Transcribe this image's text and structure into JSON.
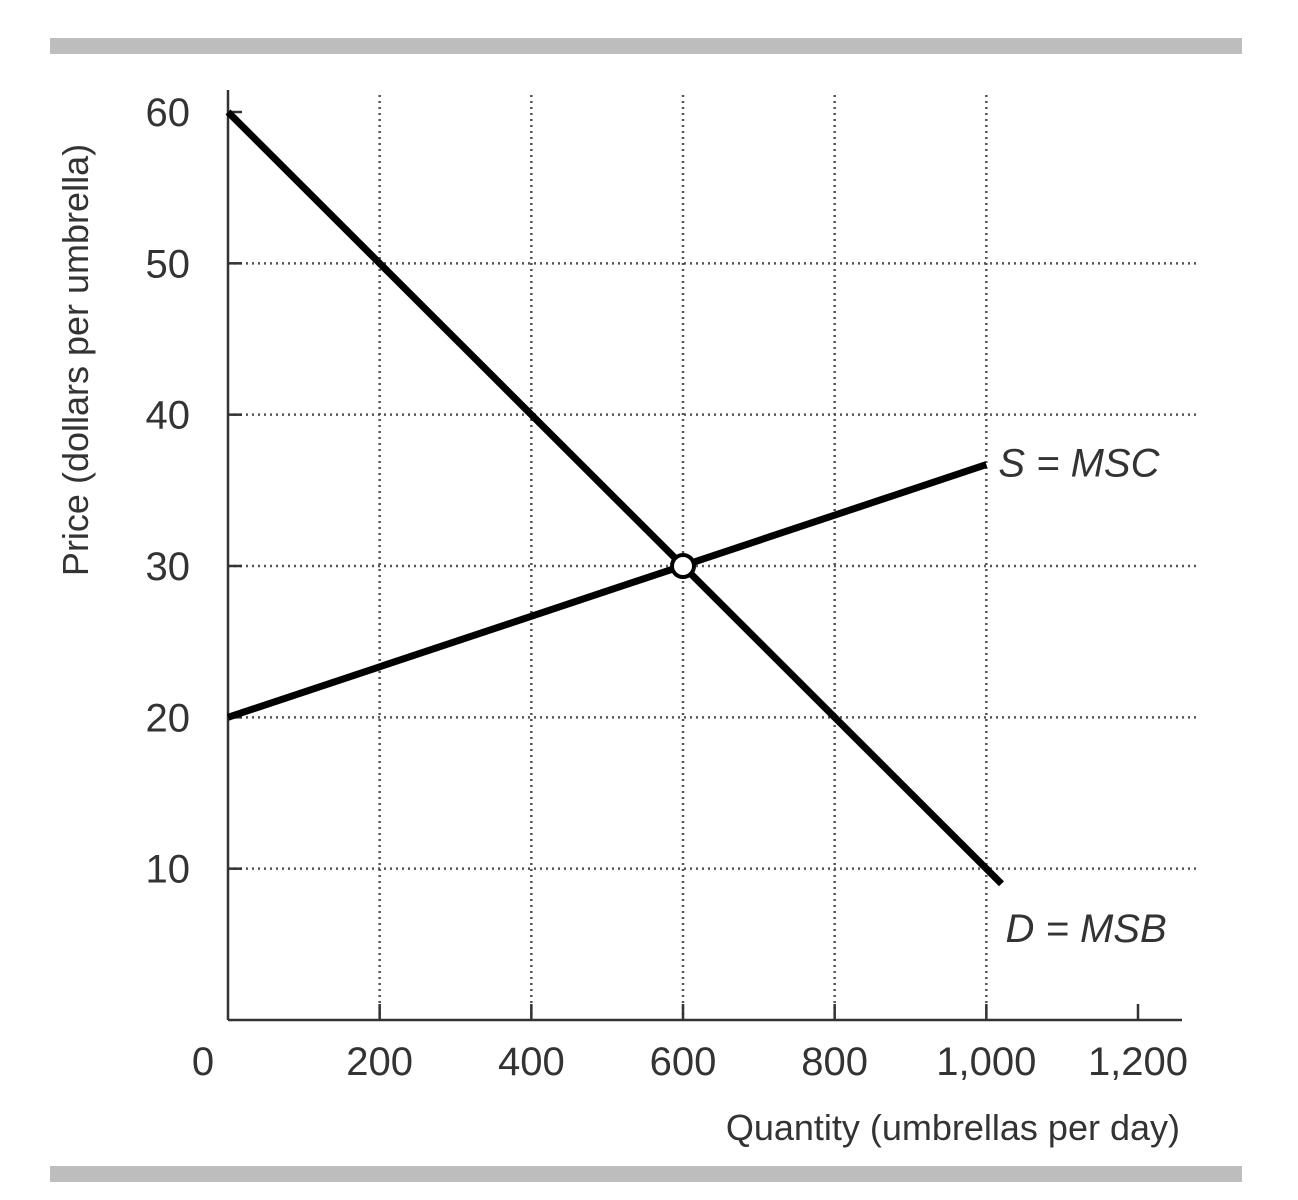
{
  "chart_data": {
    "type": "line",
    "title": "",
    "xlabel": "Quantity (umbrellas per day)",
    "ylabel": "Price (dollars per umbrella)",
    "xlim": [
      0,
      1200
    ],
    "ylim": [
      0,
      60
    ],
    "x_ticks": [
      0,
      200,
      400,
      600,
      800,
      1000,
      1200
    ],
    "x_tick_labels": [
      "0",
      "200",
      "400",
      "600",
      "800",
      "1,000",
      "1,200"
    ],
    "y_ticks": [
      10,
      20,
      30,
      40,
      50,
      60
    ],
    "y_tick_labels": [
      "10",
      "20",
      "30",
      "40",
      "50",
      "60"
    ],
    "grid": true,
    "series": [
      {
        "name": "S = MSC",
        "x": [
          0,
          1000
        ],
        "y": [
          20,
          36.7
        ],
        "color": "#000000"
      },
      {
        "name": "D = MSB",
        "x": [
          0,
          1020
        ],
        "y": [
          60,
          9
        ],
        "color": "#000000"
      }
    ],
    "equilibrium": {
      "x": 600,
      "y": 30
    }
  }
}
